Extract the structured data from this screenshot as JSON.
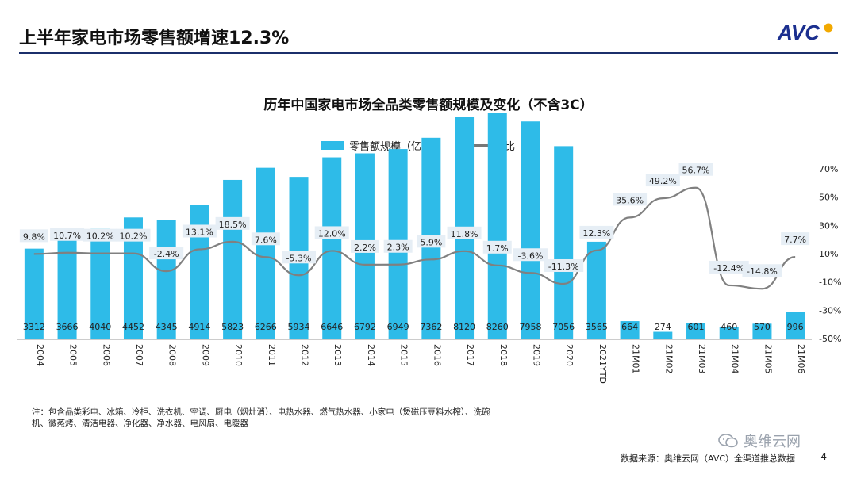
{
  "header": {
    "title": "上半年家电市场零售额增速12.3%",
    "logo_text": "AVC"
  },
  "chart_data": {
    "type": "bar",
    "title": "历年中国家电市场全品类零售额规模及变化（不含3C）",
    "categories": [
      "2004",
      "2005",
      "2006",
      "2007",
      "2008",
      "2009",
      "2010",
      "2011",
      "2012",
      "2013",
      "2014",
      "2015",
      "2016",
      "2017",
      "2018",
      "2019",
      "2020",
      "2021YTD",
      "21M01",
      "21M02",
      "21M03",
      "21M04",
      "21M05",
      "21M06"
    ],
    "series": [
      {
        "name": "零售额规模（亿元）",
        "type": "bar",
        "axis": "left",
        "values": [
          3312,
          3666,
          4040,
          4452,
          4345,
          4914,
          5823,
          6266,
          5934,
          6646,
          6792,
          6949,
          7362,
          8120,
          8260,
          7958,
          7056,
          3565,
          664,
          274,
          601,
          460,
          570,
          996
        ]
      },
      {
        "name": "同比",
        "type": "line",
        "axis": "right",
        "values": [
          9.8,
          10.7,
          10.2,
          10.2,
          -2.4,
          13.1,
          18.5,
          7.6,
          -5.3,
          12.0,
          2.2,
          2.3,
          5.9,
          11.8,
          1.7,
          -3.6,
          -11.3,
          12.3,
          35.6,
          49.2,
          56.7,
          -12.4,
          -14.8,
          7.7
        ]
      }
    ],
    "bar_labels": [
      "3312",
      "3666",
      "4040",
      "4452",
      "4345",
      "4914",
      "5823",
      "6266",
      "5934",
      "6646",
      "6792",
      "6949",
      "7362",
      "8120",
      "8260",
      "7958",
      "7056",
      "3565",
      "664",
      "274",
      "601",
      "460",
      "570",
      "996"
    ],
    "line_labels": [
      "9.8%",
      "10.7%",
      "10.2%",
      "10.2%",
      "-2.4%",
      "13.1%",
      "18.5%",
      "7.6%",
      "-5.3%",
      "12.0%",
      "2.2%",
      "2.3%",
      "5.9%",
      "11.8%",
      "1.7%",
      "-3.6%",
      "-11.3%",
      "12.3%",
      "35.6%",
      "49.2%",
      "56.7%",
      "-12.4%",
      "-14.8%",
      "7.7%"
    ],
    "y_right_ticks": [
      "70%",
      "50%",
      "30%",
      "10%",
      "-10%",
      "-30%",
      "-50%"
    ],
    "y_right_range": [
      -50,
      70
    ],
    "y_left_range": [
      0,
      9500
    ],
    "legend_position": "top-center",
    "grid": false,
    "colors": {
      "bar": "#2ebbe8",
      "line": "#808080",
      "label_bg": "#e6eef5"
    }
  },
  "footer": {
    "note": "注：包含品类彩电、冰箱、冷柜、洗衣机、空调、厨电（烟灶消）、电热水器、燃气热水器、小家电（煲磁压豆料水榨）、洗碗机、微蒸烤、清洁电器、净化器、净水器、电风扇、电暖器",
    "source": "数据来源：奥维云网（AVC）全渠道推总数据",
    "page": "-4-",
    "watermark": "奥维云网"
  }
}
